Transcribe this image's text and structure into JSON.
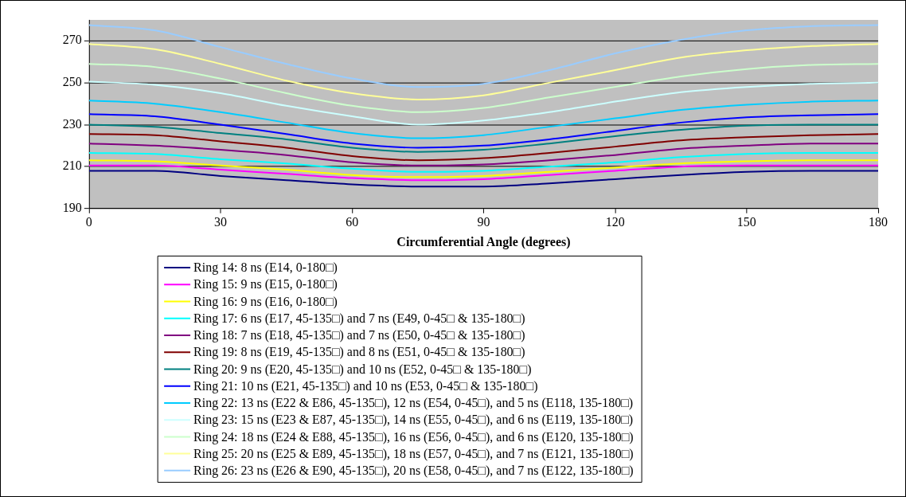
{
  "chart_data": {
    "type": "line",
    "xlabel": "Circumferential Angle (degrees)",
    "x": [
      0,
      15,
      30,
      45,
      60,
      75,
      90,
      105,
      120,
      135,
      150,
      165,
      180
    ],
    "xlim": [
      0,
      180
    ],
    "xticks": [
      0,
      30,
      60,
      90,
      120,
      150,
      180
    ],
    "ylim": [
      190,
      280
    ],
    "yticks": [
      190,
      210,
      230,
      250,
      270
    ],
    "grid": "y",
    "legend": "bottom",
    "marker": "none",
    "line_style": "solid",
    "series": [
      {
        "name": "Ring 14: 8 ns (E14, 0-180□)",
        "color": "#000080",
        "values": [
          208,
          208,
          205.5,
          203.5,
          201.5,
          200.5,
          200.5,
          202,
          204,
          206,
          207.5,
          208,
          208
        ]
      },
      {
        "name": "Ring 15: 9 ns (E15, 0-180□)",
        "color": "#ff00ff",
        "values": [
          210.5,
          210.5,
          208.5,
          206.5,
          204.5,
          203.5,
          204,
          206,
          208,
          210,
          210.5,
          210.5,
          210.5
        ]
      },
      {
        "name": "Ring 16: 9 ns (E16, 0-180□)",
        "color": "#ffff00",
        "values": [
          213,
          212.5,
          210.5,
          208.5,
          206,
          205,
          205.5,
          207.5,
          209.5,
          211.5,
          212.5,
          213,
          213
        ]
      },
      {
        "name": "Ring 17: 6 ns (E17, 45-135□) and 7 ns (E49, 0-45□ & 135-180□)",
        "color": "#00ffff",
        "values": [
          216.5,
          216,
          213.5,
          211.5,
          209,
          207.5,
          208,
          210,
          212,
          214.5,
          216,
          216.5,
          216.5
        ]
      },
      {
        "name": "Ring 18: 7 ns (E18, 45-135□) and 7 ns (E50, 0-45□ & 135-180□)",
        "color": "#800080",
        "values": [
          221,
          220,
          218,
          215.5,
          212,
          210.5,
          211,
          213,
          215.5,
          218.5,
          220,
          221,
          221
        ]
      },
      {
        "name": "Ring 19: 8 ns (E19, 45-135□) and 8 ns (E51, 0-45□ & 135-180□)",
        "color": "#800000",
        "values": [
          225.5,
          225,
          222,
          219,
          215,
          213,
          214,
          216.5,
          219.5,
          222.5,
          224,
          225,
          225.5
        ]
      },
      {
        "name": "Ring 20: 9 ns (E20, 45-135□) and 10 ns (E52, 0-45□ & 135-180□)",
        "color": "#008080",
        "values": [
          230,
          229,
          226,
          223,
          219,
          217,
          218,
          221,
          224.5,
          227.5,
          229.5,
          230,
          230
        ]
      },
      {
        "name": "Ring 21: 10 ns (E21, 45-135□) and 10 ns (E53, 0-45□ & 135-180□)",
        "color": "#0000ff",
        "values": [
          235,
          234,
          230,
          225.5,
          221,
          219,
          220,
          223,
          227,
          231,
          233.5,
          234.5,
          235
        ]
      },
      {
        "name": "Ring 22: 13 ns (E22 & E86, 45-135□), 12 ns (E54, 0-45□), and 5 ns (E118, 135-180□)",
        "color": "#00ccff",
        "values": [
          241.5,
          240,
          236,
          231,
          226,
          223.5,
          225,
          229,
          233,
          237,
          239.5,
          241,
          241.5
        ]
      },
      {
        "name": "Ring 23: 15 ns (E23 & E87, 45-135□), 14 ns (E55, 0-45□), and 6 ns (E119, 135-180□)",
        "color": "#ccffff",
        "values": [
          250.5,
          249,
          245,
          239,
          234,
          230,
          232,
          236,
          241,
          245.5,
          248,
          249.5,
          250
        ]
      },
      {
        "name": "Ring 24: 18 ns (E24 & E88, 45-135□), 16 ns (E56, 0-45□), and 6 ns (E120, 135-180□)",
        "color": "#ccffcc",
        "values": [
          259,
          257.5,
          252,
          245,
          239,
          236,
          238,
          243,
          248,
          253,
          256.5,
          258.5,
          259
        ]
      },
      {
        "name": "Ring 25: 20 ns (E25 & E89, 45-135□), 18 ns (E57, 0-45□), and 7 ns (E121, 135-180□)",
        "color": "#ffff99",
        "values": [
          268.5,
          266,
          259,
          251,
          245,
          242,
          244,
          250,
          256,
          262,
          265.5,
          267.5,
          268.5
        ]
      },
      {
        "name": "Ring 26: 23 ns (E26 & E90, 45-135□), 20 ns (E58, 0-45□), and 7 ns (E122, 135-180□)",
        "color": "#99ccff",
        "values": [
          277.5,
          275,
          267,
          259,
          252,
          248,
          249.5,
          256,
          264,
          270.5,
          275,
          277,
          277.5
        ]
      }
    ]
  }
}
